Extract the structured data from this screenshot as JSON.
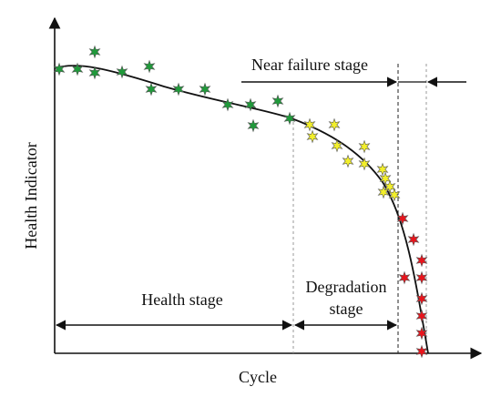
{
  "axes": {
    "ylabel": "Health Indicator",
    "xlabel": "Cycle"
  },
  "stages": {
    "health": "Health stage",
    "degradation_line1": "Degradation",
    "degradation_line2": "stage",
    "near_failure": "Near failure stage"
  },
  "colors": {
    "axis": "#111111",
    "curve": "#111111",
    "divider": "#999999",
    "health_marker": "#1f9a3a",
    "degradation_marker": "#f2ef2a",
    "near_failure_marker": "#e8141c",
    "marker_stroke": "#555555"
  },
  "markers": {
    "shape": "six-point-star-icon"
  }
}
